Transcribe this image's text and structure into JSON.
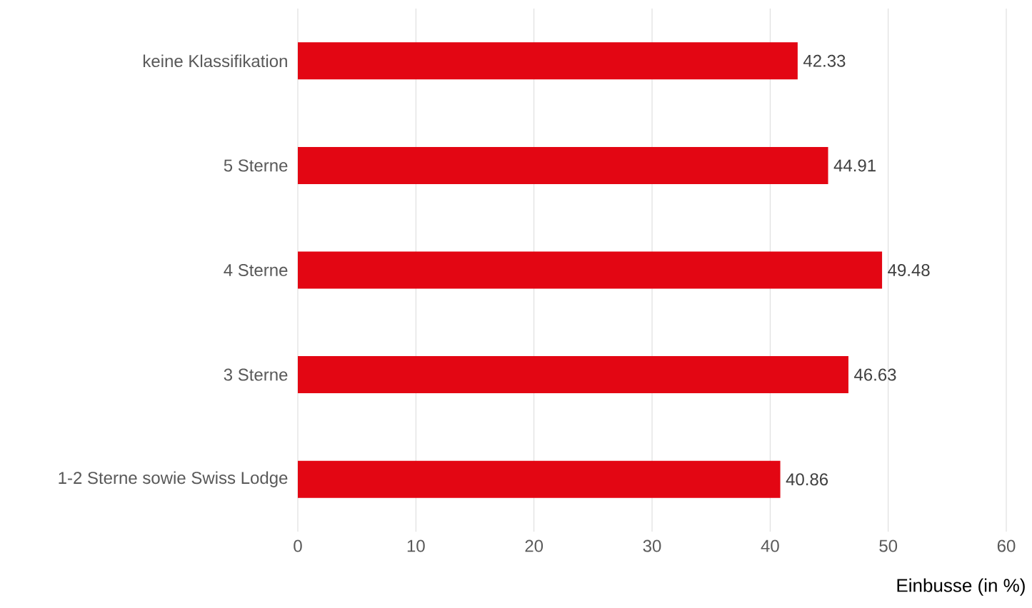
{
  "chart_data": {
    "type": "bar",
    "orientation": "horizontal",
    "xlabel": "Einbusse (in %)",
    "categories": [
      "keine Klassifikation",
      "5 Sterne",
      "4 Sterne",
      "3 Sterne",
      "1-2 Sterne sowie Swiss Lodge"
    ],
    "values": [
      42.33,
      44.91,
      49.48,
      46.63,
      40.86
    ],
    "color": "#e30613",
    "xlim": [
      0,
      60
    ],
    "xticks": [
      0,
      10,
      20,
      30,
      40,
      50,
      60
    ],
    "grid": "x",
    "data_labels": true
  }
}
